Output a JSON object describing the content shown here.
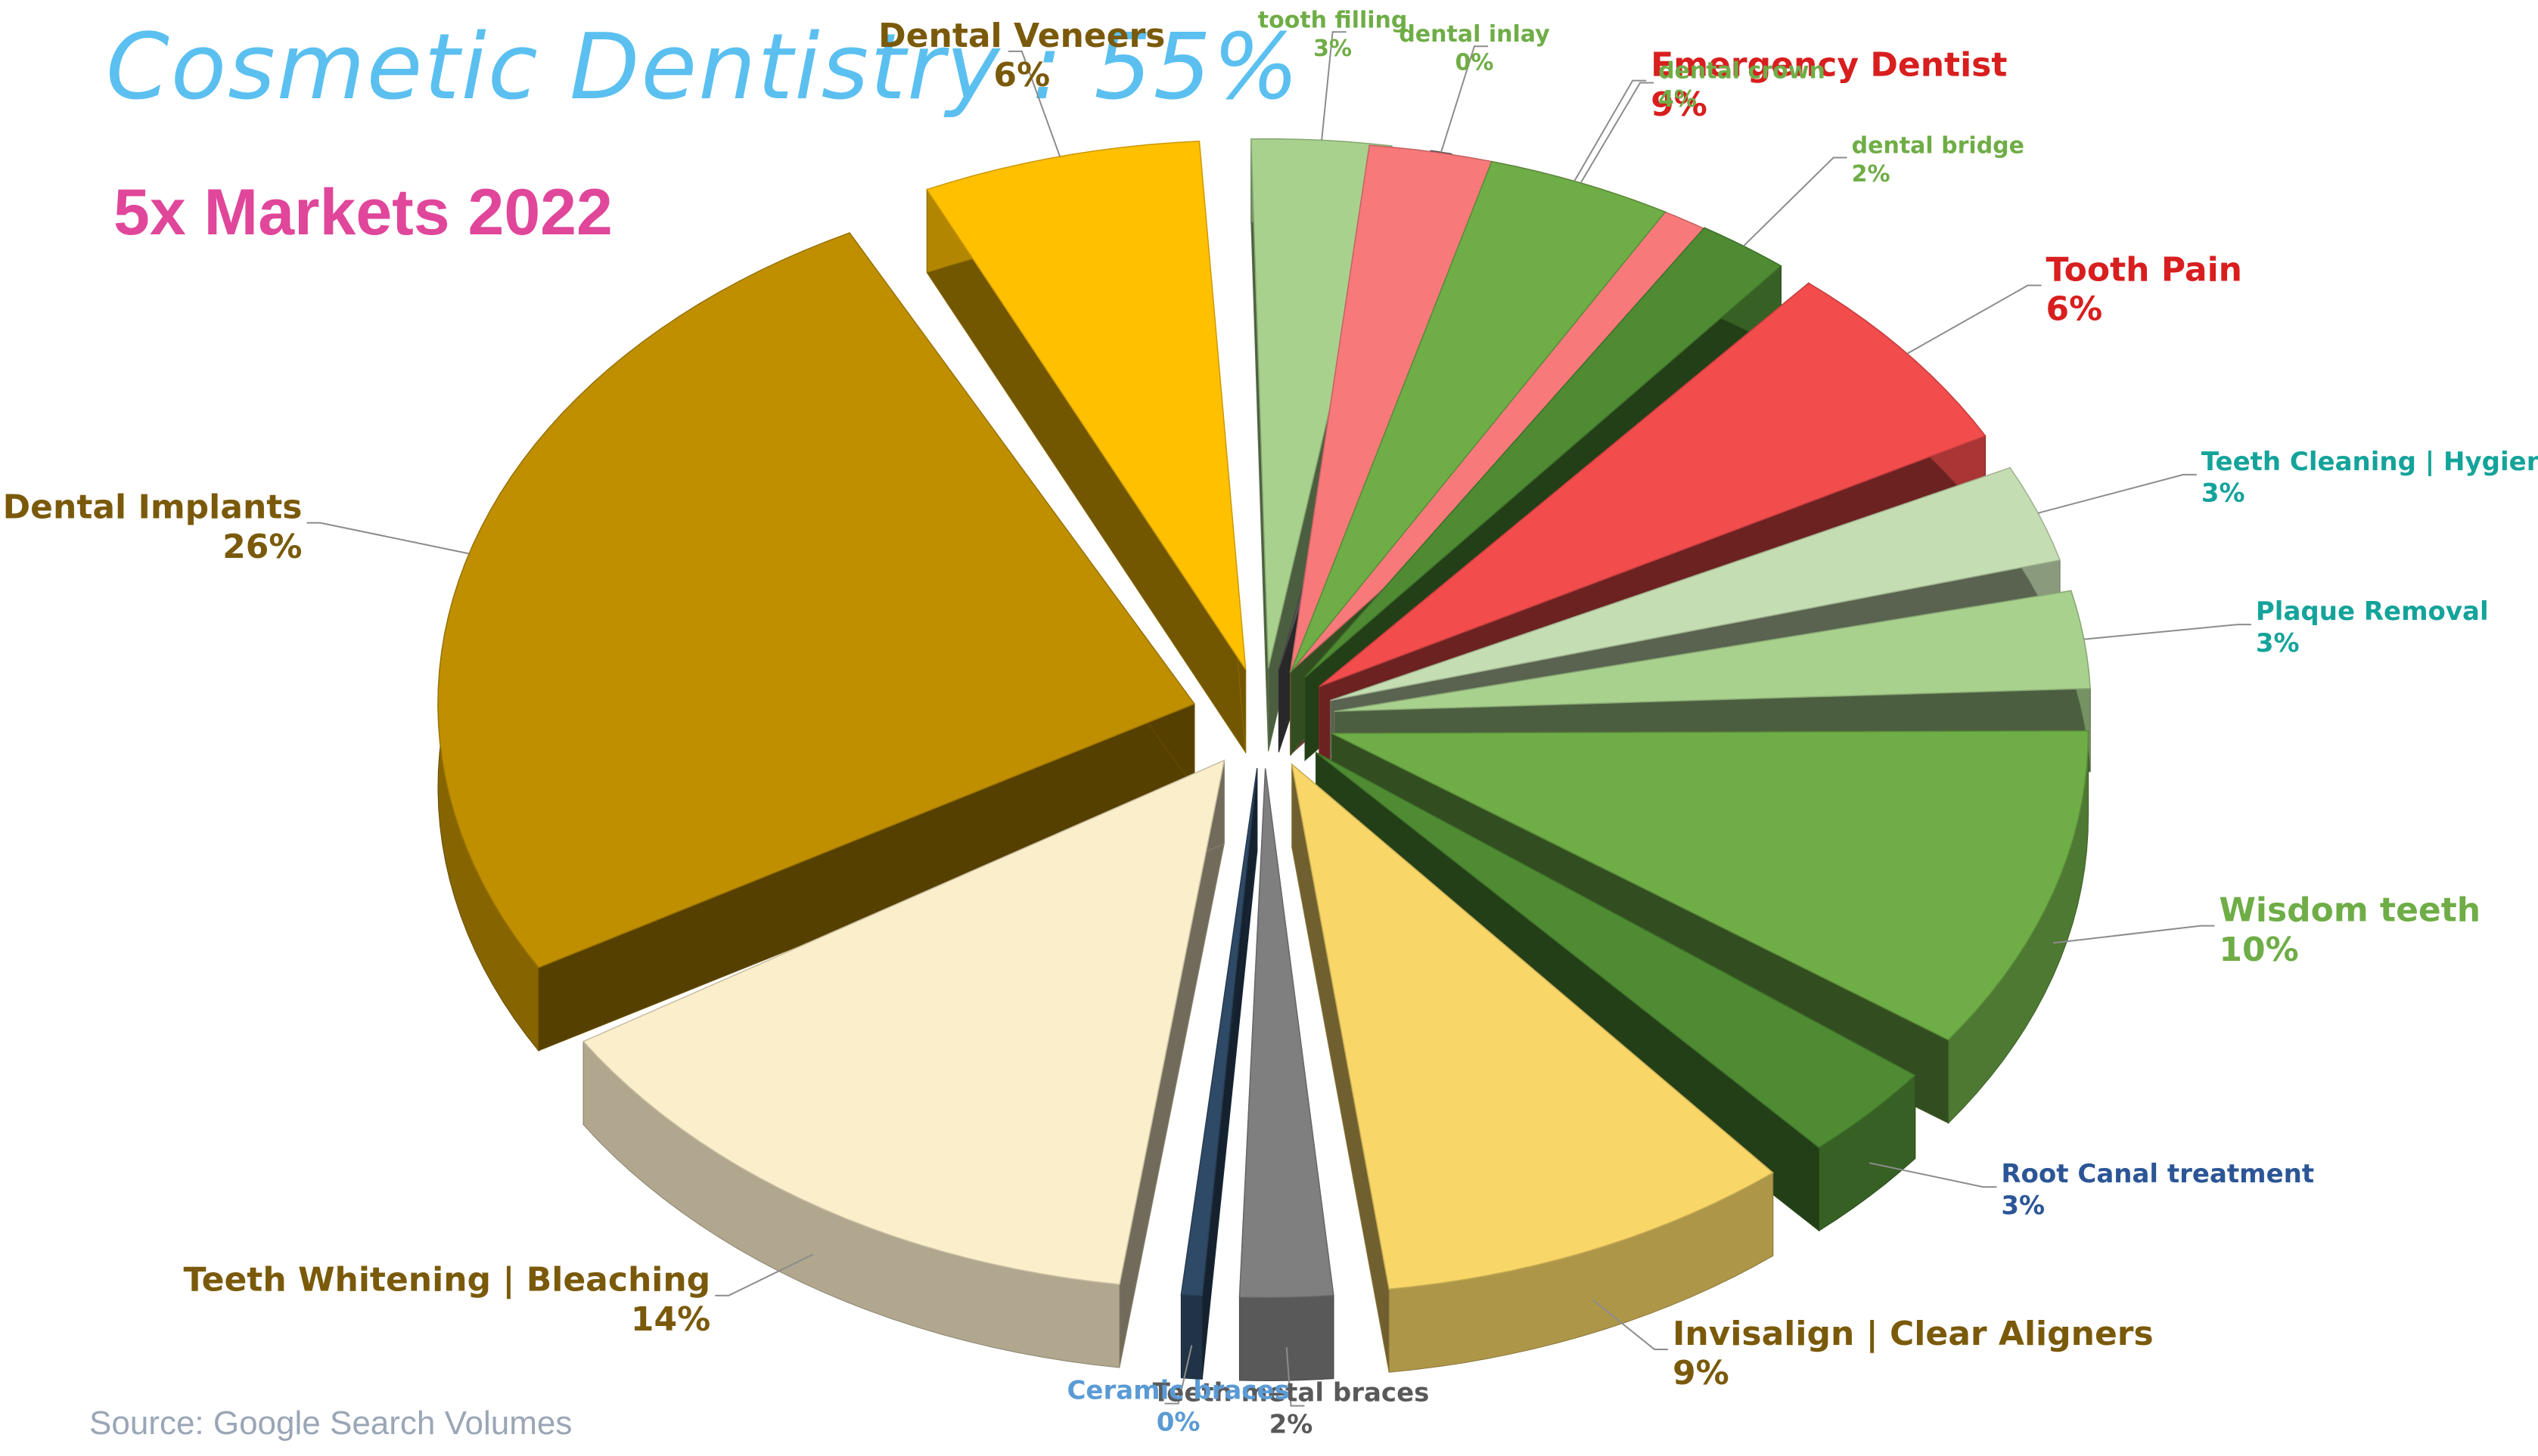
{
  "header": {
    "title": "Cosmetic Dentistry : 55%",
    "chart_title": "5x Markets 2022",
    "source": "Source: Google Search Volumes"
  },
  "chart_data": {
    "type": "pie",
    "style": "exploded-3d",
    "title": "5x Markets 2022",
    "source": "Source: Google Search Volumes",
    "slices": [
      {
        "label": "Emergency Dentist",
        "value": 9,
        "value_label": "9%",
        "color": "#F7797A",
        "label_color": "#D81E1E"
      },
      {
        "label": "Tooth Pain",
        "value": 6,
        "value_label": "6%",
        "color": "#F24C4C",
        "label_color": "#D81E1E"
      },
      {
        "label": "Teeth Cleaning | Hygiene",
        "value": 3,
        "value_label": "3%",
        "color": "#C5DDB2",
        "label_color": "#14A39A"
      },
      {
        "label": "Plaque Removal",
        "value": 3,
        "value_label": "3%",
        "color": "#A9D18E",
        "label_color": "#14A39A"
      },
      {
        "label": "Wisdom teeth",
        "value": 10,
        "value_label": "10%",
        "color": "#6FAD47",
        "label_color": "#6FAD47"
      },
      {
        "label": "Root Canal treatment",
        "value": 3,
        "value_label": "3%",
        "color": "#4E8B33",
        "label_color": "#2B5596"
      },
      {
        "label": "Invisalign | Clear Aligners",
        "value": 9,
        "value_label": "9%",
        "color": "#F8D668",
        "label_color": "#7A5A0A"
      },
      {
        "label": "Teeth metal braces",
        "value": 2,
        "value_label": "2%",
        "color": "#7F7F7F",
        "label_color": "#595959"
      },
      {
        "label": "Ceramic braces",
        "value": 0,
        "value_label": "0%",
        "color": "#2F4A66",
        "label_color": "#5B9BD5"
      },
      {
        "label": "Teeth Whitening | Bleaching",
        "value": 14,
        "value_label": "14%",
        "color": "#FBEECB",
        "label_color": "#7A5A0A"
      },
      {
        "label": "Dental Implants",
        "value": 26,
        "value_label": "26%",
        "color": "#BF8F00",
        "label_color": "#7A5A0A"
      },
      {
        "label": "Dental Veneers",
        "value": 6,
        "value_label": "6%",
        "color": "#FFC000",
        "label_color": "#7A5A0A"
      },
      {
        "label": "tooth filling",
        "value": 3,
        "value_label": "3%",
        "color": "#A9D18E",
        "label_color": "#6FAD47"
      },
      {
        "label": "dental inlay",
        "value": 0,
        "value_label": "0%",
        "color": "#595959",
        "label_color": "#6FAD47"
      },
      {
        "label": "dental crown",
        "value": 4,
        "value_label": "4%",
        "color": "#6FAD47",
        "label_color": "#6FAD47"
      },
      {
        "label": "dental bridge",
        "value": 2,
        "value_label": "2%",
        "color": "#4E8B33",
        "label_color": "#6FAD47"
      }
    ]
  }
}
